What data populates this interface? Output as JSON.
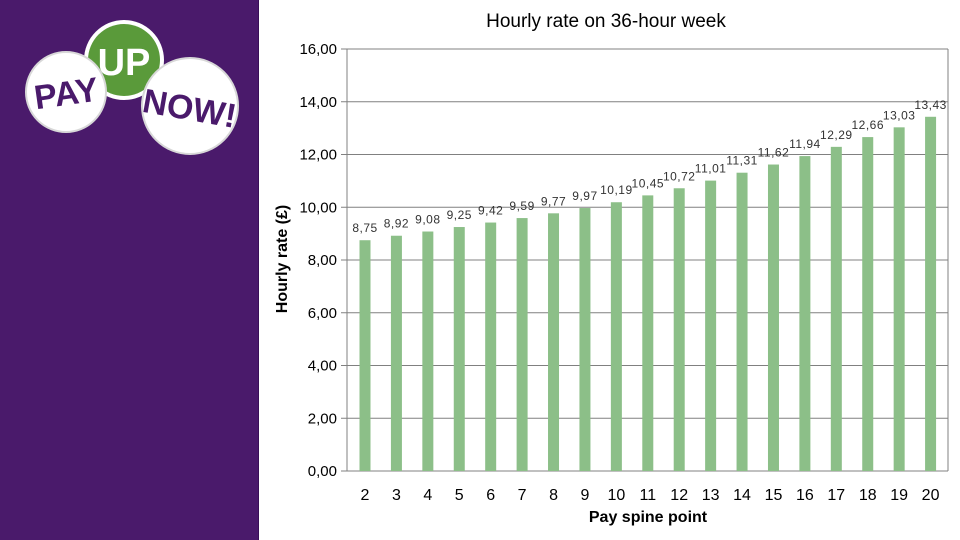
{
  "logo": {
    "pay": "PAY",
    "up": "UP",
    "now": "NOW!"
  },
  "colors": {
    "sidebar": "#4a1a6b",
    "bar": "#8cbf88",
    "grid": "#808080",
    "logo_green": "#5a9a3a"
  },
  "chart_data": {
    "type": "bar",
    "title": "Hourly rate on 36-hour week",
    "xlabel": "Pay spine point",
    "ylabel": "Hourly rate (£)",
    "ylim": [
      0,
      16
    ],
    "yticks": [
      0,
      2,
      4,
      6,
      8,
      10,
      12,
      14,
      16
    ],
    "ytick_labels": [
      "0,00",
      "2,00",
      "4,00",
      "6,00",
      "8,00",
      "10,00",
      "12,00",
      "14,00",
      "16,00"
    ],
    "grid": true,
    "categories": [
      "2",
      "3",
      "4",
      "5",
      "6",
      "7",
      "8",
      "9",
      "10",
      "11",
      "12",
      "13",
      "14",
      "15",
      "16",
      "17",
      "18",
      "19",
      "20"
    ],
    "values": [
      8.75,
      8.92,
      9.08,
      9.25,
      9.42,
      9.59,
      9.77,
      9.97,
      10.19,
      10.45,
      10.72,
      11.01,
      11.31,
      11.62,
      11.94,
      12.29,
      12.66,
      13.03,
      13.43
    ],
    "value_labels": [
      "8,75",
      "8,92",
      "9,08",
      "9,25",
      "9,42",
      "9,59",
      "9,77",
      "9,97",
      "10,19",
      "10,45",
      "10,72",
      "11,01",
      "11,31",
      "11,62",
      "11,94",
      "12,29",
      "12,66",
      "13,03",
      "13,43"
    ]
  }
}
